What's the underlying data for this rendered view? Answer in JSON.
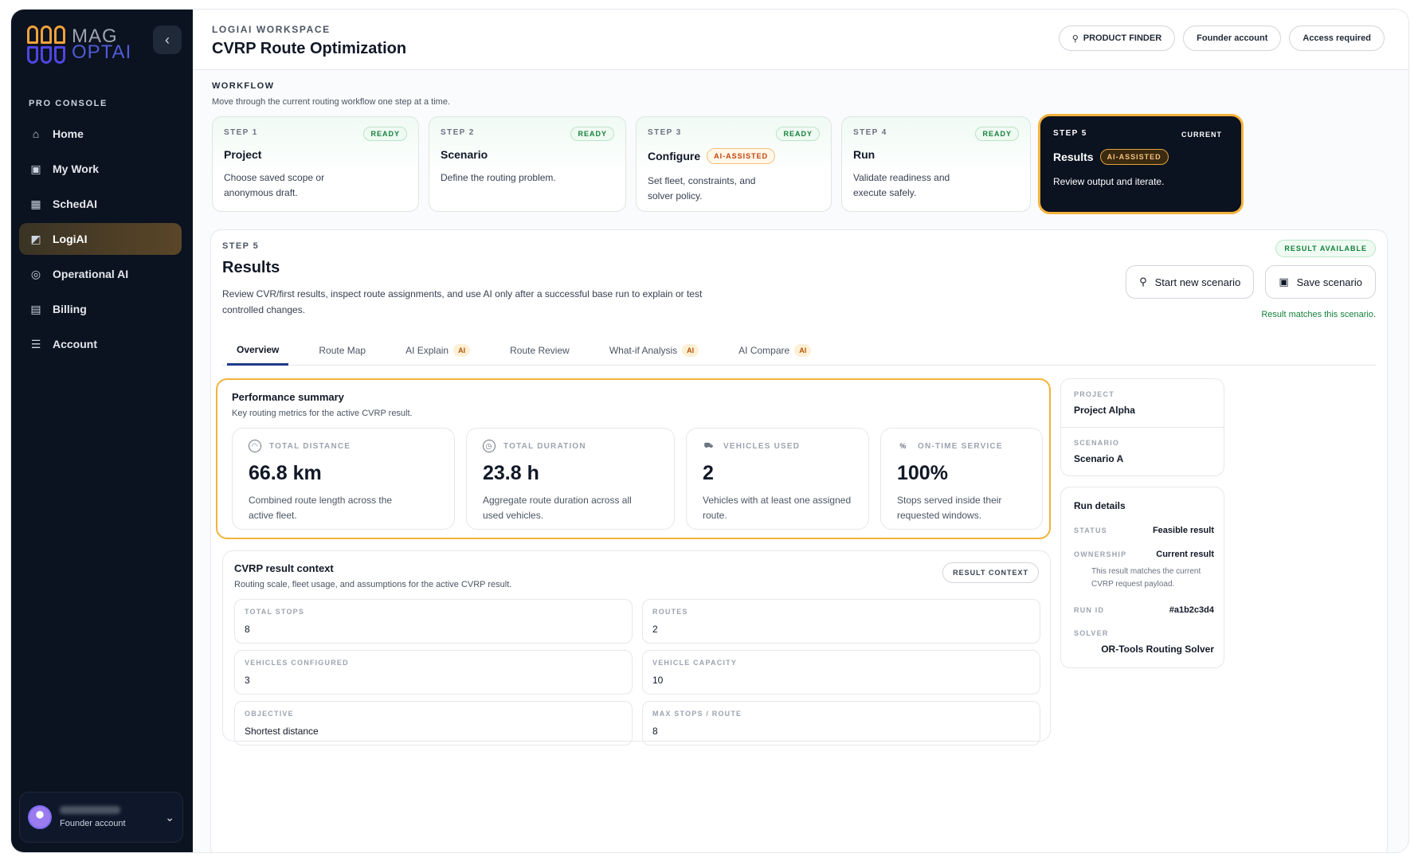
{
  "brand": {
    "logo_top": "MAG",
    "logo_bottom": "OPTAI"
  },
  "sidebar": {
    "section_label": "PRO CONSOLE",
    "items": [
      {
        "label": "Home",
        "icon": "home-icon"
      },
      {
        "label": "My Work",
        "icon": "briefcase-icon"
      },
      {
        "label": "SchedAI",
        "icon": "calendar-icon"
      },
      {
        "label": "LogiAI",
        "icon": "logiai-icon",
        "active": true
      },
      {
        "label": "Operational AI",
        "icon": "ai-chip-icon"
      },
      {
        "label": "Billing",
        "icon": "billing-icon"
      },
      {
        "label": "Account",
        "icon": "account-icon"
      }
    ],
    "account": {
      "role": "Founder account"
    }
  },
  "header": {
    "workspace": "LOGIAI WORKSPACE",
    "title": "CVRP Route Optimization",
    "buttons": {
      "product_finder": "PRODUCT FINDER",
      "founder": "Founder account",
      "access": "Access required"
    }
  },
  "workflow": {
    "label": "WORKFLOW",
    "description": "Move through the current routing workflow one step at a time.",
    "steps": [
      {
        "num": "STEP 1",
        "status": "READY",
        "title": "Project",
        "desc": "Choose saved scope or anonymous draft."
      },
      {
        "num": "STEP 2",
        "status": "READY",
        "title": "Scenario",
        "desc": "Define the routing problem."
      },
      {
        "num": "STEP 3",
        "status": "READY",
        "title": "Configure",
        "ai": "AI-ASSISTED",
        "desc": "Set fleet, constraints, and solver policy."
      },
      {
        "num": "STEP 4",
        "status": "READY",
        "title": "Run",
        "desc": "Validate readiness and execute safely."
      },
      {
        "num": "STEP 5",
        "status": "CURRENT",
        "title": "Results",
        "ai": "AI-ASSISTED",
        "desc": "Review output and iterate."
      }
    ]
  },
  "results": {
    "step": "STEP 5",
    "title": "Results",
    "description": "Review CVR/first results, inspect route assignments, and use AI only after a successful base run to explain or test controlled changes.",
    "availability": "RESULT AVAILABLE",
    "start_new": "Start new scenario",
    "save": "Save scenario",
    "match_note": "Result matches this scenario.",
    "tabs": [
      {
        "label": "Overview",
        "active": true
      },
      {
        "label": "Route Map"
      },
      {
        "label": "AI Explain",
        "ai": "AI"
      },
      {
        "label": "Route Review"
      },
      {
        "label": "What-if Analysis",
        "ai": "AI"
      },
      {
        "label": "AI Compare",
        "ai": "AI"
      }
    ],
    "performance": {
      "title": "Performance summary",
      "description": "Key routing metrics for the active CVRP result.",
      "metrics": [
        {
          "label": "TOTAL DISTANCE",
          "value": "66.8 km",
          "desc": "Combined route length across the active fleet."
        },
        {
          "label": "TOTAL DURATION",
          "value": "23.8 h",
          "desc": "Aggregate route duration across all used vehicles."
        },
        {
          "label": "VEHICLES USED",
          "value": "2",
          "desc": "Vehicles with at least one assigned route."
        },
        {
          "label": "ON-TIME SERVICE",
          "value": "100%",
          "desc": "Stops served inside their requested windows."
        }
      ]
    },
    "context": {
      "title": "CVRP result context",
      "description": "Routing scale, fleet usage, and assumptions for the active CVRP result.",
      "badge": "RESULT CONTEXT",
      "cells": [
        {
          "label": "TOTAL STOPS",
          "value": "8"
        },
        {
          "label": "ROUTES",
          "value": "2"
        },
        {
          "label": "VEHICLES CONFIGURED",
          "value": "3"
        },
        {
          "label": "VEHICLE CAPACITY",
          "value": "10"
        },
        {
          "label": "OBJECTIVE",
          "value": "Shortest distance"
        },
        {
          "label": "MAX STOPS / ROUTE",
          "value": "8"
        }
      ]
    },
    "project": {
      "label": "PROJECT",
      "value": "Project Alpha"
    },
    "scenario": {
      "label": "SCENARIO",
      "value": "Scenario A"
    },
    "run_details": {
      "title": "Run details",
      "status_label": "STATUS",
      "status": "Feasible result",
      "ownership_label": "OWNERSHIP",
      "ownership": "Current result",
      "ownership_note": "This result matches the current CVRP request payload.",
      "run_id_label": "RUN ID",
      "run_id": "#a1b2c3d4",
      "solver_label": "SOLVER",
      "solver": "OR-Tools Routing Solver"
    }
  }
}
